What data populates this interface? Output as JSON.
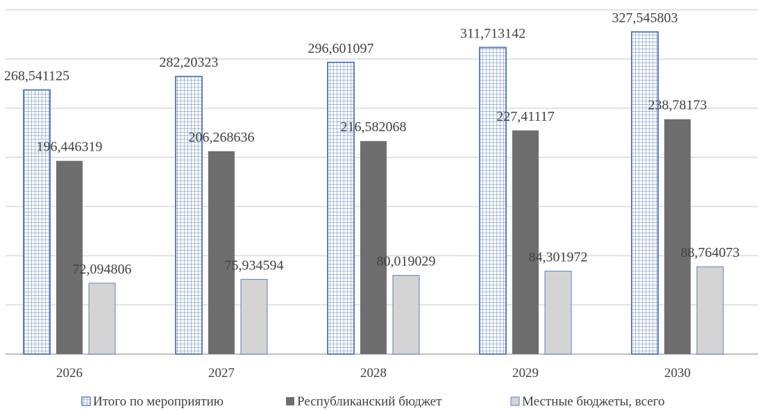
{
  "chart_data": {
    "type": "bar",
    "categories": [
      "2026",
      "2027",
      "2028",
      "2029",
      "2030"
    ],
    "series": [
      {
        "name": "Итого по мероприятию",
        "values": [
          268.541125,
          282.20323,
          296.601097,
          311.713142,
          327.545803
        ],
        "labels": [
          "268,541125",
          "282,20323",
          "296,601097",
          "311,713142",
          "327,545803"
        ],
        "color": "#5b7fc0",
        "pattern": "grid"
      },
      {
        "name": "Республиканский бюджет",
        "values": [
          196.446319,
          206.268636,
          216.582068,
          227.41117,
          238.78173
        ],
        "labels": [
          "196,446319",
          "206,268636",
          "216,582068",
          "227,41117",
          "238,78173"
        ],
        "color": "#6e6e6e",
        "pattern": "solid"
      },
      {
        "name": "Местные бюджеты, всего",
        "values": [
          72.094806,
          75.934594,
          80.019029,
          84.301972,
          88.764073
        ],
        "labels": [
          "72,094806",
          "75,934594",
          "80,019029",
          "84,301972",
          "88,764073"
        ],
        "color": "#d4d4d4",
        "pattern": "solid"
      }
    ],
    "title": "",
    "xlabel": "",
    "ylabel": "",
    "ylim": [
      0,
      350
    ],
    "grid": true,
    "legend": "bottom"
  }
}
